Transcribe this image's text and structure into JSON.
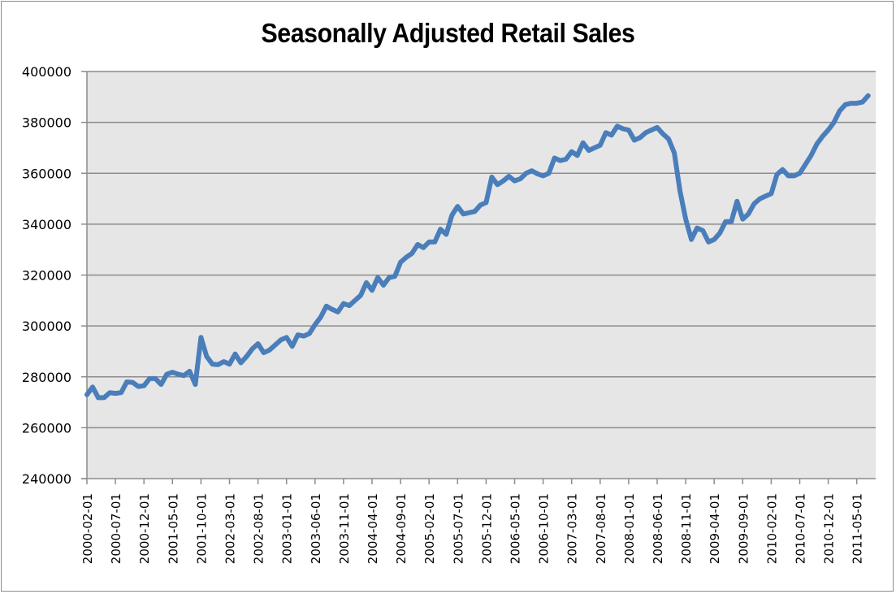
{
  "chart_data": {
    "type": "line",
    "title": "Seasonally Adjusted Retail Sales",
    "xlabel": "",
    "ylabel": "",
    "ylim": [
      240000,
      400000
    ],
    "yticks": [
      "240000",
      "260000",
      "280000",
      "300000",
      "320000",
      "340000",
      "360000",
      "380000",
      "400000"
    ],
    "xtick_labels": [
      "2000-02-01",
      "2000-07-01",
      "2000-12-01",
      "2001-05-01",
      "2001-10-01",
      "2002-03-01",
      "2002-08-01",
      "2003-01-01",
      "2003-06-01",
      "2003-11-01",
      "2004-04-01",
      "2004-09-01",
      "2005-02-01",
      "2005-07-01",
      "2005-12-01",
      "2006-05-01",
      "2006-10-01",
      "2007-03-01",
      "2007-08-01",
      "2008-01-01",
      "2008-06-01",
      "2008-11-01",
      "2009-04-01",
      "2009-09-01",
      "2010-02-01",
      "2010-07-01",
      "2010-12-01",
      "2011-05-01"
    ],
    "grid": true,
    "legend": "none",
    "line_color": "#4a7ebb",
    "plot_background": "#e6e6e6",
    "x_start": "2000-02-01",
    "x_step": "1 month",
    "series": [
      {
        "name": "Retail Sales",
        "values": [
          273000,
          276000,
          271800,
          271800,
          273800,
          273500,
          273800,
          278000,
          277800,
          276200,
          276500,
          279300,
          279300,
          277000,
          281000,
          281800,
          281000,
          280500,
          282200,
          277000,
          295500,
          288000,
          285000,
          284800,
          286000,
          285000,
          289000,
          285500,
          288000,
          291000,
          293000,
          289500,
          290500,
          292500,
          294500,
          295500,
          292000,
          296500,
          296000,
          297000,
          300500,
          303500,
          307800,
          306500,
          305500,
          308800,
          308000,
          310000,
          312000,
          317000,
          314000,
          319000,
          316000,
          319000,
          319500,
          325000,
          327000,
          328500,
          332000,
          330800,
          333000,
          333000,
          338000,
          336000,
          343500,
          347000,
          344000,
          344500,
          345000,
          347500,
          348500,
          358500,
          355500,
          357000,
          358800,
          357000,
          357800,
          360000,
          361000,
          359800,
          359000,
          360000,
          366000,
          365000,
          365500,
          368500,
          367000,
          372000,
          369000,
          370000,
          371000,
          376000,
          375000,
          378500,
          377500,
          377000,
          373000,
          374000,
          376000,
          377000,
          378000,
          375500,
          373500,
          368000,
          353000,
          342000,
          334000,
          338500,
          337500,
          333000,
          334000,
          336500,
          341000,
          341000,
          349000,
          342000,
          344000,
          348000,
          350000,
          351000,
          352000,
          359500,
          361500,
          359000,
          359000,
          360000,
          363500,
          367000,
          371500,
          374500,
          377000,
          380000,
          384500,
          387000,
          387500,
          387500,
          388000,
          390500
        ]
      }
    ]
  }
}
